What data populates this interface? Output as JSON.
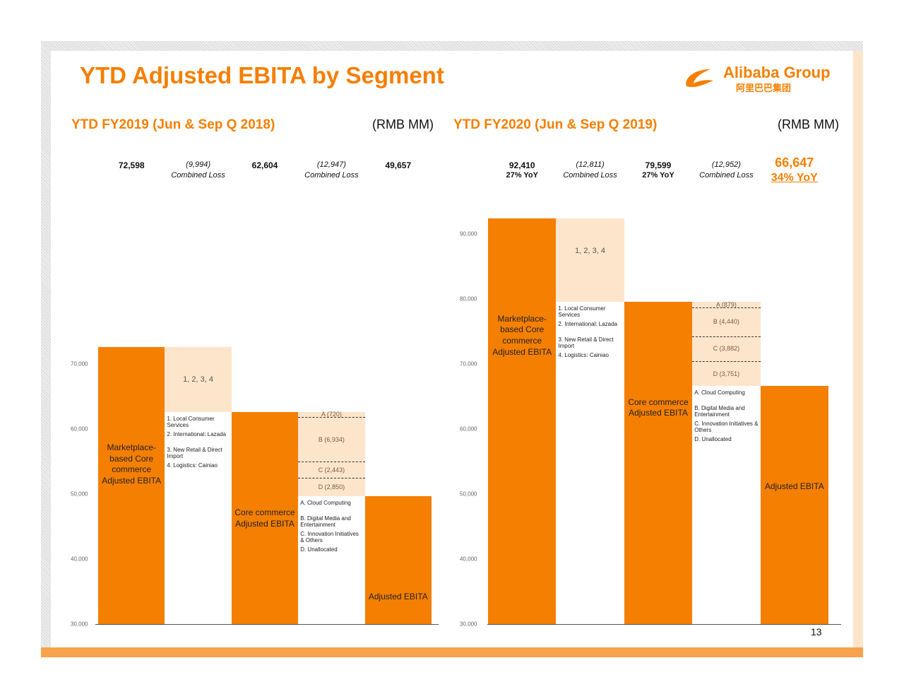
{
  "title": "YTD Adjusted EBITA by Segment",
  "logo": {
    "name": "Alibaba Group",
    "chinese": "阿里巴巴集团"
  },
  "page_number": 13,
  "chart_data": [
    {
      "type": "waterfall",
      "title": "YTD FY2019 (Jun & Sep Q 2018)",
      "unit": "(RMB MM)",
      "categories": [
        "Marketplace-based Core commerce Adjusted EBITA",
        "1, 2, 3, 4",
        "Core commerce Adjusted EBITA",
        null,
        "Adjusted EBITA"
      ],
      "measures": [
        "total",
        "relative",
        "total",
        "relative",
        "total"
      ],
      "values": [
        72598,
        -9994,
        62604,
        -12947,
        49657
      ],
      "value_labels": [
        "72,598",
        "(9,994)",
        "62,604",
        "(12,947)",
        "49,657"
      ],
      "annotations": [
        null,
        "Combined Loss",
        null,
        "Combined Loss",
        null
      ],
      "details": [
        null,
        {
          "notes": [
            "1. Local Consumer Services",
            "2. International: Lazada",
            "3. New Retail & Direct Import",
            "4. Logistics: Cainiao"
          ]
        },
        null,
        {
          "segments": [
            {
              "value": -720,
              "label": "A (720)"
            },
            {
              "value": -6934,
              "label": "B (6,934)"
            },
            {
              "value": -2443,
              "label": "C (2,443)"
            },
            {
              "value": -2850,
              "label": "D (2,850)"
            }
          ],
          "notes": [
            "A. Cloud Computing",
            "B. Digital Media and Entertainment",
            "C. Innovation Initiatives & Others",
            "D. Unallocated"
          ]
        },
        null
      ],
      "colors": {
        "total": "#f57f00",
        "relative": "#fde5cc"
      },
      "ylim": [
        30000,
        95000
      ],
      "yticks": [
        {
          "value": 30000,
          "label": "30,000"
        },
        {
          "value": 40000,
          "label": "40,000"
        },
        {
          "value": 50000,
          "label": "50,000"
        },
        {
          "value": 60000,
          "label": "60,000"
        },
        {
          "value": 70000,
          "label": "70,000"
        }
      ]
    },
    {
      "type": "waterfall",
      "title": "YTD FY2020 (Jun & Sep Q 2019)",
      "unit": "(RMB MM)",
      "categories": [
        "Marketplace-based Core commerce Adjusted EBITA",
        "1, 2, 3, 4",
        "Core commerce Adjusted EBITA",
        null,
        "Adjusted EBITA"
      ],
      "measures": [
        "total",
        "relative",
        "total",
        "relative",
        "total"
      ],
      "values": [
        92410,
        -12811,
        79599,
        -12952,
        66647
      ],
      "value_labels": [
        "92,410",
        "(12,811)",
        "79,599",
        "(12,952)",
        "66,647"
      ],
      "annotations": [
        "27% YoY",
        "Combined Loss",
        "27% YoY",
        "Combined Loss",
        "34% YoY"
      ],
      "details": [
        null,
        {
          "notes": [
            "1. Local Consumer Services",
            "2. International: Lazada",
            "3. New Retail & Direct Import",
            "4. Logistics: Cainiao"
          ]
        },
        null,
        {
          "segments": [
            {
              "value": -879,
              "label": "A (879)"
            },
            {
              "value": -4440,
              "label": "B (4,440)"
            },
            {
              "value": -3882,
              "label": "C (3,882)"
            },
            {
              "value": -3751,
              "label": "D (3,751)"
            }
          ],
          "notes": [
            "A. Cloud Computing",
            "B. Digital Media and Entertainment",
            "C. Innovation Initiatives & Others",
            "D. Unallocated"
          ]
        },
        null
      ],
      "colors": {
        "total": "#f57f00",
        "relative": "#fde5cc"
      },
      "ylim": [
        30000,
        95000
      ],
      "yticks": [
        {
          "value": 30000,
          "label": "30,000"
        },
        {
          "value": 40000,
          "label": "40,000"
        },
        {
          "value": 50000,
          "label": "50,000"
        },
        {
          "value": 60000,
          "label": "60,000"
        },
        {
          "value": 70000,
          "label": "70,000"
        },
        {
          "value": 80000,
          "label": "80,000"
        },
        {
          "value": 90000,
          "label": "90,000"
        }
      ]
    }
  ]
}
